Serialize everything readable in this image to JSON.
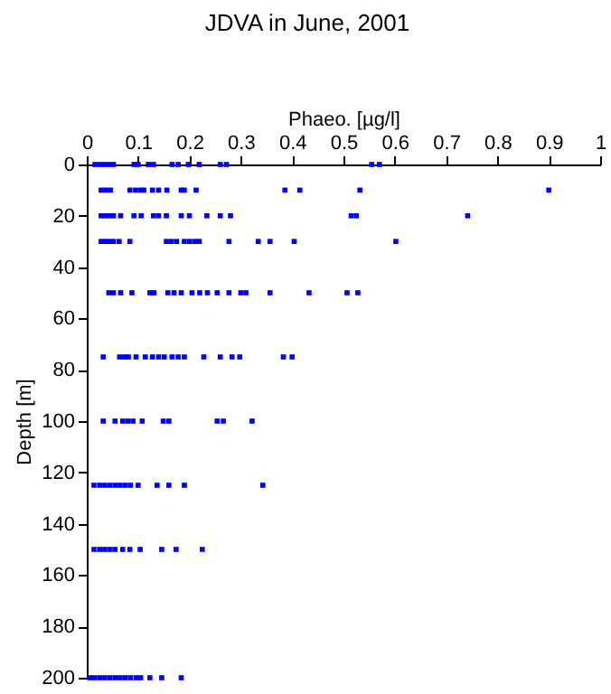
{
  "chart_data": {
    "type": "scatter",
    "title": "JDVA in June, 2001",
    "xlabel": "Phaeo. [µg/l]",
    "ylabel": "Depth [m]",
    "xlim": [
      0,
      1
    ],
    "xticks": [
      0,
      0.1,
      0.2,
      0.3,
      0.4,
      0.5,
      0.6,
      0.7,
      0.8,
      0.9,
      1
    ],
    "ylim": [
      200,
      0
    ],
    "yticks": [
      0,
      20,
      40,
      60,
      80,
      100,
      120,
      140,
      160,
      180,
      200
    ],
    "grid": false,
    "marker": "square",
    "series": [
      {
        "color": "#0000ff",
        "x": [
          0.016,
          0.026,
          0.034,
          0.043,
          0.052,
          0.092,
          0.1,
          0.12,
          0.13,
          0.166,
          0.178,
          0.198,
          0.219,
          0.26,
          0.272,
          0.555,
          0.57,
          0.028,
          0.037,
          0.046,
          0.084,
          0.095,
          0.105,
          0.111,
          0.128,
          0.14,
          0.156,
          0.184,
          0.19,
          0.213,
          0.386,
          0.415,
          0.532,
          0.9,
          0.028,
          0.035,
          0.043,
          0.052,
          0.066,
          0.092,
          0.106,
          0.13,
          0.14,
          0.155,
          0.184,
          0.2,
          0.234,
          0.26,
          0.28,
          0.515,
          0.525,
          0.742,
          0.028,
          0.036,
          0.044,
          0.052,
          0.063,
          0.084,
          0.155,
          0.165,
          0.175,
          0.19,
          0.2,
          0.21,
          0.219,
          0.277,
          0.334,
          0.357,
          0.404,
          0.602,
          0.043,
          0.052,
          0.066,
          0.088,
          0.123,
          0.131,
          0.158,
          0.17,
          0.184,
          0.205,
          0.22,
          0.235,
          0.254,
          0.277,
          0.3,
          0.31,
          0.357,
          0.433,
          0.507,
          0.528,
          0.032,
          0.064,
          0.073,
          0.081,
          0.096,
          0.114,
          0.128,
          0.14,
          0.151,
          0.166,
          0.178,
          0.19,
          0.228,
          0.26,
          0.283,
          0.298,
          0.383,
          0.4,
          0.032,
          0.055,
          0.07,
          0.08,
          0.09,
          0.108,
          0.149,
          0.16,
          0.254,
          0.266,
          0.322,
          0.014,
          0.025,
          0.035,
          0.045,
          0.055,
          0.065,
          0.075,
          0.085,
          0.1,
          0.137,
          0.16,
          0.19,
          0.343,
          0.014,
          0.025,
          0.035,
          0.045,
          0.055,
          0.07,
          0.084,
          0.104,
          0.146,
          0.174,
          0.225,
          0.006,
          0.015,
          0.025,
          0.035,
          0.045,
          0.055,
          0.065,
          0.075,
          0.085,
          0.096,
          0.105,
          0.123,
          0.146,
          0.184
        ],
        "values": [
          0,
          0,
          0,
          0,
          0,
          0,
          0,
          0,
          0,
          0,
          0,
          0,
          0,
          0,
          0,
          0,
          0,
          10,
          10,
          10,
          10,
          10,
          10,
          10,
          10,
          10,
          10,
          10,
          10,
          10,
          10,
          10,
          10,
          10,
          20,
          20,
          20,
          20,
          20,
          20,
          20,
          20,
          20,
          20,
          20,
          20,
          20,
          20,
          20,
          20,
          20,
          20,
          30,
          30,
          30,
          30,
          30,
          30,
          30,
          30,
          30,
          30,
          30,
          30,
          30,
          30,
          30,
          30,
          30,
          30,
          50,
          50,
          50,
          50,
          50,
          50,
          50,
          50,
          50,
          50,
          50,
          50,
          50,
          50,
          50,
          50,
          50,
          50,
          50,
          50,
          75,
          75,
          75,
          75,
          75,
          75,
          75,
          75,
          75,
          75,
          75,
          75,
          75,
          75,
          75,
          75,
          75,
          75,
          100,
          100,
          100,
          100,
          100,
          100,
          100,
          100,
          100,
          100,
          100,
          125,
          125,
          125,
          125,
          125,
          125,
          125,
          125,
          125,
          125,
          125,
          125,
          125,
          150,
          150,
          150,
          150,
          150,
          150,
          150,
          150,
          150,
          150,
          150,
          200,
          200,
          200,
          200,
          200,
          200,
          200,
          200,
          200,
          200,
          200,
          200,
          200,
          200
        ]
      }
    ]
  }
}
